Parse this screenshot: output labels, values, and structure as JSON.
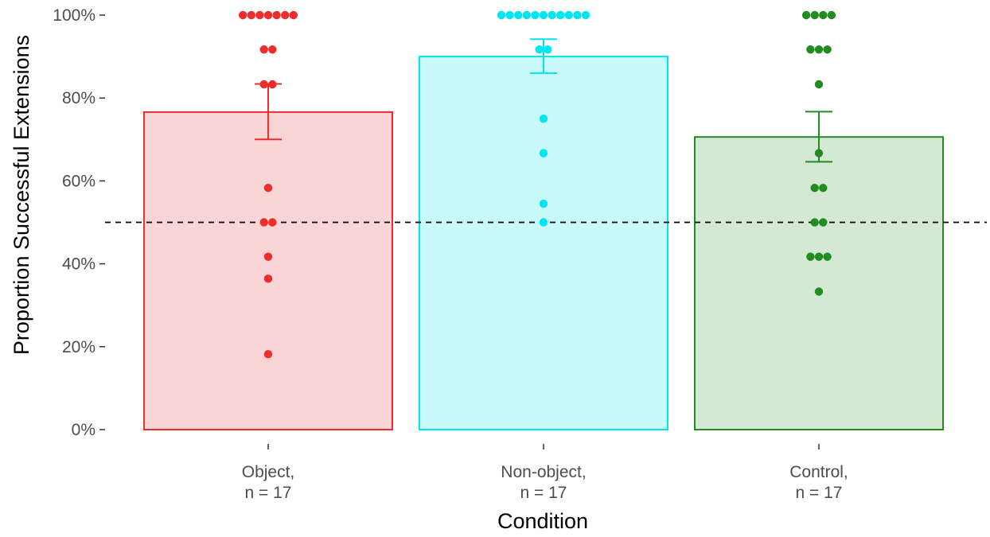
{
  "chart_data": {
    "type": "bar",
    "xlabel": "Condition",
    "ylabel": "Proportion Successful Extensions",
    "ylim": [
      0,
      1
    ],
    "y_ticks": [
      0,
      0.2,
      0.4,
      0.6,
      0.8,
      1.0
    ],
    "y_tick_labels": [
      "0%",
      "20%",
      "40%",
      "60%",
      "80%",
      "100%"
    ],
    "reference_line": {
      "value": 0.5,
      "style": "dashed",
      "color": "#000000"
    },
    "grid": false,
    "legend": "none",
    "categories": [
      {
        "label_line1": "Object,",
        "label_line2": "n = 17",
        "mean": 0.766,
        "error_low": 0.7,
        "error_high": 0.834,
        "stroke": "#ee2c2c",
        "fill": "#fad5d5",
        "points": [
          1.0,
          1.0,
          1.0,
          1.0,
          1.0,
          1.0,
          1.0,
          0.917,
          0.917,
          0.833,
          0.833,
          0.583,
          0.5,
          0.5,
          0.417,
          0.364,
          0.182
        ]
      },
      {
        "label_line1": "Non-object,",
        "label_line2": "n = 17",
        "mean": 0.9,
        "error_low": 0.86,
        "error_high": 0.942,
        "stroke": "#00e5ee",
        "fill": "#c8fafa",
        "points": [
          1.0,
          1.0,
          1.0,
          1.0,
          1.0,
          1.0,
          1.0,
          1.0,
          1.0,
          1.0,
          1.0,
          0.917,
          0.917,
          0.75,
          0.667,
          0.545,
          0.5
        ]
      },
      {
        "label_line1": "Control,",
        "label_line2": "n = 17",
        "mean": 0.706,
        "error_low": 0.646,
        "error_high": 0.767,
        "stroke": "#228b22",
        "fill": "#d4e8d4",
        "points": [
          1.0,
          1.0,
          1.0,
          1.0,
          0.917,
          0.917,
          0.917,
          0.833,
          0.667,
          0.583,
          0.583,
          0.5,
          0.5,
          0.417,
          0.417,
          0.417,
          0.333
        ]
      }
    ]
  }
}
